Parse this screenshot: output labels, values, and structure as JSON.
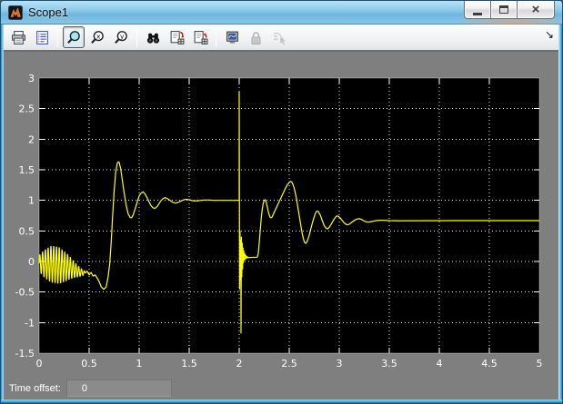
{
  "window": {
    "title": "Scope1"
  },
  "titlebar": {
    "close_glyph": "×",
    "buttons": [
      {
        "name": "minimize"
      },
      {
        "name": "maximize"
      },
      {
        "name": "close"
      }
    ]
  },
  "toolbar": {
    "overflow_arrow": "↘",
    "buttons": [
      {
        "name": "print",
        "icon": "print-icon"
      },
      {
        "name": "parameters",
        "icon": "parameters-icon"
      },
      {
        "name": "zoom",
        "icon": "zoom-icon",
        "selected": true,
        "sep_before": true
      },
      {
        "name": "zoom-x",
        "icon": "zoom-x-icon"
      },
      {
        "name": "zoom-y",
        "icon": "zoom-y-icon"
      },
      {
        "name": "autoscale",
        "icon": "autoscale-binoculars-icon",
        "sep_before": true
      },
      {
        "name": "save-axes",
        "icon": "save-axes-icon"
      },
      {
        "name": "restore-axes",
        "icon": "restore-axes-icon"
      },
      {
        "name": "floating-scope",
        "icon": "floating-scope-icon",
        "sep_before": true
      },
      {
        "name": "lock-axes",
        "icon": "lock-icon",
        "disabled": true
      },
      {
        "name": "signal-selection",
        "icon": "signal-selection-icon",
        "disabled": true
      }
    ]
  },
  "statusbar": {
    "label": "Time offset:",
    "value": "0"
  },
  "colors": {
    "figure_bg": "#7f7f7f",
    "plot_bg": "#000000",
    "trace": "#ffff00",
    "grid": "#ffffff",
    "tick_label": "#ffffff",
    "titlebar_blue": "#7cc0e4"
  },
  "chart_data": {
    "type": "line",
    "title": "",
    "xlabel": "",
    "ylabel": "",
    "xlim": [
      0,
      5
    ],
    "ylim": [
      -1.5,
      3
    ],
    "grid": true,
    "grid_style": "dotted",
    "xticks": {
      "values": [
        0,
        0.5,
        1,
        1.5,
        2,
        2.5,
        3,
        3.5,
        4,
        4.5,
        5
      ],
      "labels": [
        "0",
        "0.5",
        "1",
        "1.5",
        "2",
        "2.5",
        "3",
        "3.5",
        "4",
        "4.5",
        "5"
      ]
    },
    "yticks": {
      "values": [
        3,
        2.5,
        2,
        1.5,
        1,
        0.5,
        0,
        -0.5,
        -1,
        -1.5
      ],
      "labels": [
        "3",
        "2.5",
        "2",
        "1.5",
        "1",
        "0.5",
        "0",
        "-0.5",
        "-1",
        "-1.5"
      ]
    },
    "series": [
      {
        "name": "scope-signal",
        "color": "#ffff00",
        "segments": [
          {
            "type": "osc",
            "t0": 0.0,
            "t1": 0.46,
            "freq": 36,
            "mean": [
              [
                0,
                -0.03
              ],
              [
                0.15,
                -0.05
              ],
              [
                0.3,
                -0.1
              ],
              [
                0.4,
                -0.17
              ],
              [
                0.46,
                -0.19
              ]
            ],
            "amp": [
              [
                0,
                0.13
              ],
              [
                0.05,
                0.22
              ],
              [
                0.12,
                0.3
              ],
              [
                0.2,
                0.3
              ],
              [
                0.28,
                0.22
              ],
              [
                0.35,
                0.13
              ],
              [
                0.42,
                0.06
              ],
              [
                0.46,
                0.03
              ]
            ]
          },
          {
            "type": "points",
            "pts": [
              [
                0.48,
                -0.16
              ],
              [
                0.5,
                -0.22
              ],
              [
                0.52,
                -0.18
              ],
              [
                0.54,
                -0.24
              ],
              [
                0.56,
                -0.22
              ],
              [
                0.58,
                -0.27
              ],
              [
                0.6,
                -0.33
              ],
              [
                0.62,
                -0.41
              ],
              [
                0.645,
                -0.455
              ],
              [
                0.67,
                -0.42
              ],
              [
                0.69,
                -0.25
              ],
              [
                0.705,
                -0.05
              ],
              [
                0.72,
                0.3
              ],
              [
                0.735,
                0.75
              ],
              [
                0.75,
                1.15
              ],
              [
                0.765,
                1.45
              ],
              [
                0.78,
                1.6
              ],
              [
                0.79,
                1.63
              ],
              [
                0.8,
                1.62
              ],
              [
                0.815,
                1.52
              ],
              [
                0.83,
                1.35
              ],
              [
                0.85,
                1.12
              ],
              [
                0.87,
                0.92
              ],
              [
                0.89,
                0.78
              ],
              [
                0.91,
                0.72
              ],
              [
                0.925,
                0.715
              ],
              [
                0.94,
                0.76
              ],
              [
                0.96,
                0.86
              ],
              [
                0.98,
                0.97
              ],
              [
                1.0,
                1.07
              ],
              [
                1.02,
                1.12
              ],
              [
                1.04,
                1.14
              ],
              [
                1.06,
                1.1
              ],
              [
                1.08,
                1.04
              ],
              [
                1.1,
                0.97
              ],
              [
                1.12,
                0.91
              ],
              [
                1.14,
                0.875
              ],
              [
                1.16,
                0.87
              ],
              [
                1.18,
                0.9
              ],
              [
                1.2,
                0.95
              ],
              [
                1.22,
                1.0
              ],
              [
                1.24,
                1.03
              ],
              [
                1.26,
                1.045
              ],
              [
                1.28,
                1.03
              ],
              [
                1.3,
                1.01
              ],
              [
                1.32,
                0.985
              ],
              [
                1.34,
                0.965
              ],
              [
                1.36,
                0.955
              ],
              [
                1.38,
                0.96
              ],
              [
                1.4,
                0.975
              ],
              [
                1.42,
                0.99
              ],
              [
                1.44,
                1.005
              ],
              [
                1.46,
                1.015
              ],
              [
                1.48,
                1.015
              ],
              [
                1.5,
                1.01
              ],
              [
                1.53,
                0.995
              ],
              [
                1.56,
                0.99
              ],
              [
                1.6,
                0.995
              ],
              [
                1.65,
                1.005
              ],
              [
                1.7,
                1.005
              ],
              [
                1.75,
                1.0
              ],
              [
                1.85,
                1.0
              ],
              [
                2.0,
                1.0
              ]
            ]
          },
          {
            "type": "points",
            "pts": [
              [
                2.0,
                2.77
              ],
              [
                2.004,
                -0.45
              ],
              [
                2.008,
                0.5
              ],
              [
                2.012,
                -0.3
              ],
              [
                2.016,
                0.35
              ],
              [
                2.018,
                -1.17
              ],
              [
                2.022,
                0.4
              ],
              [
                2.026,
                -0.25
              ],
              [
                2.03,
                0.3
              ],
              [
                2.034,
                -0.12
              ],
              [
                2.038,
                0.22
              ],
              [
                2.042,
                -0.02
              ],
              [
                2.046,
                0.17
              ],
              [
                2.05,
                0.02
              ],
              [
                2.055,
                0.13
              ],
              [
                2.06,
                0.04
              ],
              [
                2.066,
                0.1
              ],
              [
                2.072,
                0.05
              ],
              [
                2.08,
                0.08
              ],
              [
                2.09,
                0.06
              ],
              [
                2.1,
                0.065
              ],
              [
                2.18,
                0.07
              ]
            ]
          },
          {
            "type": "points",
            "pts": [
              [
                2.19,
                0.12
              ],
              [
                2.2,
                0.3
              ],
              [
                2.21,
                0.5
              ],
              [
                2.22,
                0.7
              ],
              [
                2.23,
                0.85
              ],
              [
                2.24,
                0.95
              ],
              [
                2.25,
                1.0
              ],
              [
                2.26,
                1.01
              ],
              [
                2.27,
                0.97
              ],
              [
                2.28,
                0.9
              ],
              [
                2.29,
                0.82
              ],
              [
                2.3,
                0.76
              ],
              [
                2.31,
                0.72
              ],
              [
                2.32,
                0.715
              ],
              [
                2.33,
                0.73
              ],
              [
                2.34,
                0.77
              ],
              [
                2.36,
                0.84
              ],
              [
                2.38,
                0.91
              ],
              [
                2.4,
                0.98
              ],
              [
                2.42,
                1.05
              ],
              [
                2.44,
                1.12
              ],
              [
                2.46,
                1.19
              ],
              [
                2.48,
                1.25
              ],
              [
                2.5,
                1.295
              ],
              [
                2.515,
                1.31
              ],
              [
                2.53,
                1.29
              ],
              [
                2.55,
                1.2
              ],
              [
                2.57,
                1.05
              ],
              [
                2.59,
                0.85
              ],
              [
                2.61,
                0.65
              ],
              [
                2.63,
                0.45
              ],
              [
                2.65,
                0.32
              ],
              [
                2.665,
                0.295
              ],
              [
                2.68,
                0.33
              ],
              [
                2.7,
                0.43
              ],
              [
                2.72,
                0.56
              ],
              [
                2.74,
                0.68
              ],
              [
                2.76,
                0.78
              ],
              [
                2.775,
                0.825
              ],
              [
                2.79,
                0.82
              ],
              [
                2.81,
                0.76
              ],
              [
                2.83,
                0.67
              ],
              [
                2.85,
                0.585
              ],
              [
                2.87,
                0.54
              ],
              [
                2.885,
                0.535
              ],
              [
                2.9,
                0.56
              ],
              [
                2.92,
                0.61
              ],
              [
                2.94,
                0.67
              ],
              [
                2.96,
                0.72
              ],
              [
                2.975,
                0.745
              ],
              [
                2.99,
                0.74
              ],
              [
                3.01,
                0.71
              ],
              [
                3.03,
                0.67
              ],
              [
                3.05,
                0.63
              ],
              [
                3.07,
                0.605
              ],
              [
                3.085,
                0.6
              ],
              [
                3.1,
                0.61
              ],
              [
                3.12,
                0.635
              ],
              [
                3.14,
                0.66
              ],
              [
                3.16,
                0.68
              ],
              [
                3.18,
                0.695
              ],
              [
                3.2,
                0.7
              ],
              [
                3.22,
                0.69
              ],
              [
                3.24,
                0.67
              ],
              [
                3.26,
                0.655
              ],
              [
                3.28,
                0.645
              ],
              [
                3.3,
                0.645
              ],
              [
                3.33,
                0.655
              ],
              [
                3.36,
                0.665
              ],
              [
                3.39,
                0.672
              ],
              [
                3.42,
                0.675
              ],
              [
                3.46,
                0.672
              ],
              [
                3.5,
                0.668
              ],
              [
                3.6,
                0.665
              ],
              [
                3.8,
                0.667
              ],
              [
                4.2,
                0.668
              ],
              [
                5.0,
                0.668
              ]
            ]
          }
        ]
      }
    ]
  }
}
